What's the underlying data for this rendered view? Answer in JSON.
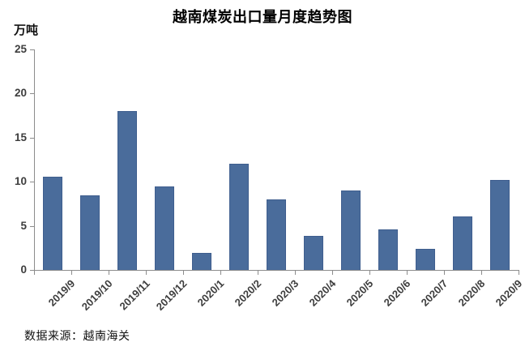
{
  "title": "越南煤炭出口量月度趋势图",
  "unit_label": "万吨",
  "source": "数据来源：越南海关",
  "colors": {
    "bar_fill": "#4a6c9b",
    "bar_border": "#3f5e8e",
    "axis": "#8c8c8c",
    "tick_text": "#3d3d3d",
    "title_text": "#000000"
  },
  "chart_data": {
    "type": "bar",
    "title": "越南煤炭出口量月度趋势图",
    "xlabel": "",
    "ylabel": "万吨",
    "categories": [
      "2019/9",
      "2019/10",
      "2019/11",
      "2019/12",
      "2020/1",
      "2020/2",
      "2020/3",
      "2020/4",
      "2020/5",
      "2020/6",
      "2020/7",
      "2020/8",
      "2020/9"
    ],
    "values": [
      10.6,
      8.5,
      18,
      9.5,
      1.9,
      12,
      8,
      3.9,
      9,
      4.6,
      2.4,
      6.1,
      10.2
    ],
    "ylim": [
      0,
      25
    ],
    "yticks": [
      0,
      5,
      10,
      15,
      20,
      25
    ],
    "grid": false,
    "legend": false,
    "x_label_rotation_deg": 45,
    "source_note": "数据来源：越南海关"
  }
}
